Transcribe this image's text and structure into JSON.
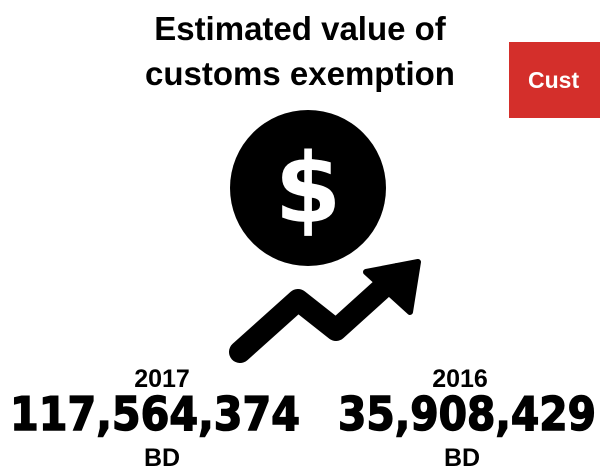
{
  "title": "Estimated value of customs exemption",
  "tab": "Cust",
  "items": [
    {
      "year": "2017",
      "value": "117,564,374",
      "unit": "BD"
    },
    {
      "year": "2016",
      "value": "35,908,429",
      "unit": "BD"
    }
  ]
}
